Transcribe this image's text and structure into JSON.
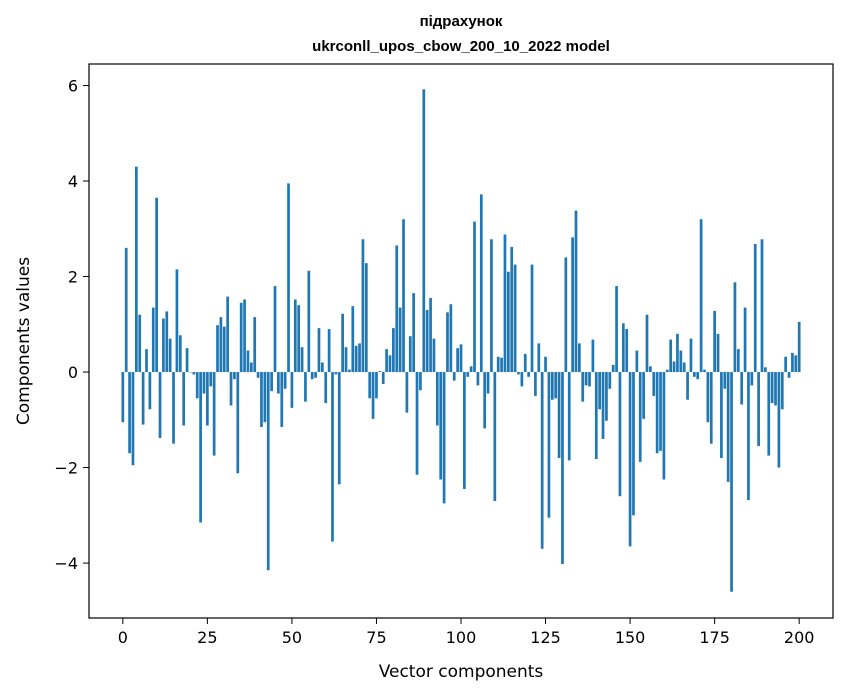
{
  "chart_data": {
    "type": "bar",
    "title": "підрахунок",
    "subtitle": "ukrconll_upos_cbow_200_10_2022 model",
    "xlabel": "Vector components",
    "ylabel": "Components values",
    "xlim": [
      -10,
      210
    ],
    "ylim": [
      -5.15,
      6.45
    ],
    "xticks": [
      0,
      25,
      50,
      75,
      100,
      125,
      150,
      175,
      200
    ],
    "yticks": [
      -4,
      -2,
      0,
      2,
      4,
      6
    ],
    "ytick_labels": [
      "−4",
      "−2",
      "0",
      "2",
      "4",
      "6"
    ],
    "grid": false,
    "bar_color": "#1f77b4",
    "x_start": 0,
    "values": [
      -1.05,
      2.6,
      -1.7,
      -1.95,
      4.3,
      1.2,
      -1.1,
      0.48,
      -0.78,
      1.35,
      3.65,
      -1.38,
      1.12,
      1.27,
      0.7,
      -1.5,
      2.15,
      0.77,
      -1.12,
      0.5,
      0.0,
      -0.05,
      -0.55,
      -3.15,
      -0.45,
      -1.12,
      -0.3,
      -1.75,
      0.98,
      1.15,
      0.95,
      1.58,
      -0.7,
      -0.15,
      -2.12,
      1.45,
      1.52,
      0.45,
      0.2,
      1.15,
      -0.12,
      -1.15,
      -1.05,
      -4.15,
      -0.4,
      1.8,
      -0.45,
      -1.15,
      -0.35,
      3.95,
      -0.75,
      1.52,
      1.4,
      0.52,
      -0.62,
      2.12,
      -0.15,
      -0.12,
      0.92,
      0.2,
      -0.65,
      0.9,
      -3.55,
      -0.05,
      -2.35,
      1.22,
      0.52,
      0.05,
      1.38,
      0.55,
      0.6,
      2.78,
      2.28,
      -0.55,
      -0.98,
      -0.55,
      0.02,
      -0.25,
      0.48,
      0.35,
      0.92,
      2.65,
      1.35,
      3.2,
      -0.85,
      0.75,
      1.65,
      -2.15,
      -0.38,
      5.92,
      1.3,
      1.55,
      0.7,
      -1.12,
      -2.25,
      -2.75,
      1.25,
      1.42,
      -0.18,
      0.5,
      0.58,
      -2.45,
      -0.1,
      0.12,
      3.15,
      -0.28,
      3.72,
      -1.18,
      -0.45,
      2.78,
      -2.7,
      0.32,
      0.3,
      2.88,
      2.1,
      2.62,
      2.25,
      -0.05,
      -0.3,
      0.38,
      -0.1,
      2.25,
      -0.5,
      0.6,
      -3.7,
      0.32,
      -3.05,
      -0.58,
      -0.55,
      -1.8,
      -4.02,
      2.4,
      -1.85,
      2.82,
      3.38,
      0.6,
      -0.62,
      -0.28,
      -0.3,
      0.68,
      -1.82,
      -0.78,
      -1.4,
      -1.02,
      -0.35,
      0.15,
      1.8,
      -2.6,
      1.02,
      0.9,
      -3.65,
      -3.0,
      0.45,
      -1.88,
      -0.98,
      1.2,
      0.12,
      -0.5,
      -1.7,
      -1.65,
      -2.25,
      0.05,
      0.68,
      0.22,
      0.8,
      0.45,
      0.2,
      -0.58,
      0.7,
      -0.1,
      -0.15,
      3.2,
      0.05,
      -1.05,
      -1.5,
      1.28,
      0.8,
      -1.8,
      -0.35,
      -2.3,
      -4.6,
      1.88,
      0.48,
      -0.68,
      1.35,
      -2.68,
      -0.28,
      2.68,
      -1.55,
      2.78,
      0.1,
      -1.75,
      -0.65,
      -0.7,
      -2.0,
      -0.78,
      0.32,
      -0.12,
      0.4,
      0.35,
      1.05
    ]
  }
}
